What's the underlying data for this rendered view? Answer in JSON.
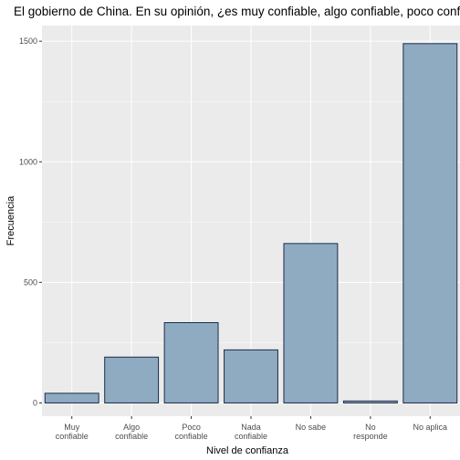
{
  "chart_data": {
    "type": "bar",
    "title": "El gobierno de China. En su opinión, ¿es muy confiable, algo confiable, poco confiable, nada confiable, o no sabe o no tiene suficiente información para juzgar?",
    "xlabel": "Nivel de confianza",
    "ylabel": "Frecuencia",
    "categories": [
      [
        "Muy",
        "confiable"
      ],
      [
        "Algo",
        "confiable"
      ],
      [
        "Poco",
        "confiable"
      ],
      [
        "Nada",
        "confiable"
      ],
      [
        "No sabe"
      ],
      [
        "No",
        "responde"
      ],
      [
        "No aplica"
      ]
    ],
    "values": [
      40,
      190,
      333,
      220,
      661,
      8,
      1490
    ],
    "ylim": [
      -55,
      1565
    ],
    "yticks": [
      0,
      500,
      1000,
      1500
    ],
    "grid": true,
    "colors": {
      "bar_fill": "#8fabc2",
      "bar_stroke": "#1c2b4a",
      "panel_bg": "#ebebeb",
      "grid_major": "#ffffff"
    }
  }
}
